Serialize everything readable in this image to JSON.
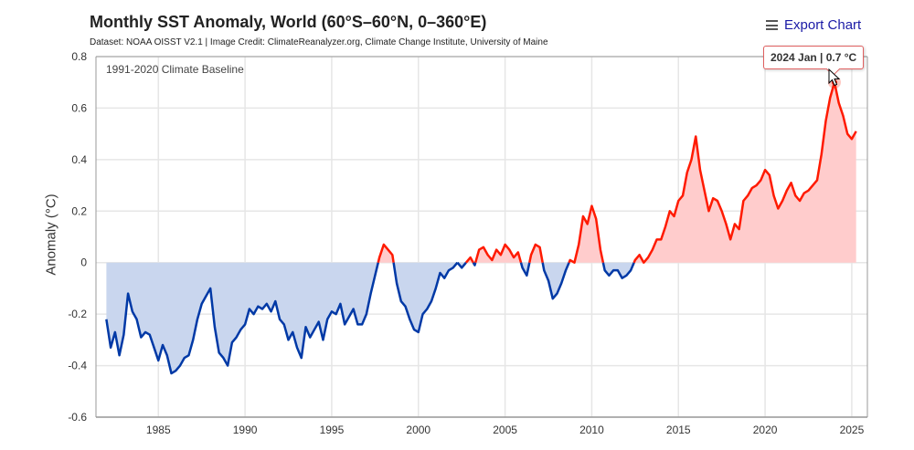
{
  "header": {
    "title": "Monthly SST Anomaly, World (60°S–60°N, 0–360°E)",
    "subtitle": "Dataset: NOAA OISST V2.1 | Image Credit: ClimateReanalyzer.org, Climate Change Institute, University of Maine",
    "export_label": "Export Chart",
    "export_icon": "hamburger-menu-icon"
  },
  "tooltip": {
    "text": "2024 Jan | 0.7 °C"
  },
  "colors": {
    "positive_line": "#ff1a00",
    "positive_fill": "#ffcccc",
    "negative_line": "#0039a6",
    "negative_fill": "#c9d6ee",
    "grid": "#e6e6e6",
    "axis": "#999999"
  },
  "chart_data": {
    "type": "area",
    "title": "Monthly SST Anomaly, World (60°S–60°N, 0–360°E)",
    "annotation": "1991-2020 Climate Baseline",
    "xlabel": "",
    "ylabel": "Anomaly (°C)",
    "xlim": [
      1981.4,
      2025.9
    ],
    "ylim": [
      -0.6,
      0.8
    ],
    "xticks": [
      1985,
      1990,
      1995,
      2000,
      2005,
      2010,
      2015,
      2020,
      2025
    ],
    "yticks": [
      -0.6,
      -0.4,
      -0.2,
      0,
      0.2,
      0.4,
      0.6,
      0.8
    ],
    "ytick_labels": [
      "-0.6",
      "-0.4",
      "-0.2",
      "0",
      "0.2",
      "0.4",
      "0.6",
      "0.8"
    ],
    "grid": true,
    "legend": "none",
    "baseline": 0,
    "sampling": "quarterly samples (Jan, Apr, Jul, Oct) approximating the monthly series",
    "start": 1982.0,
    "step": 0.25,
    "values": [
      -0.22,
      -0.33,
      -0.27,
      -0.36,
      -0.28,
      -0.12,
      -0.19,
      -0.22,
      -0.29,
      -0.27,
      -0.28,
      -0.33,
      -0.38,
      -0.32,
      -0.36,
      -0.43,
      -0.42,
      -0.4,
      -0.37,
      -0.36,
      -0.3,
      -0.22,
      -0.16,
      -0.13,
      -0.1,
      -0.25,
      -0.35,
      -0.37,
      -0.4,
      -0.31,
      -0.29,
      -0.26,
      -0.24,
      -0.18,
      -0.2,
      -0.17,
      -0.18,
      -0.16,
      -0.19,
      -0.15,
      -0.22,
      -0.24,
      -0.3,
      -0.27,
      -0.33,
      -0.37,
      -0.25,
      -0.29,
      -0.26,
      -0.23,
      -0.3,
      -0.22,
      -0.19,
      -0.2,
      -0.16,
      -0.24,
      -0.21,
      -0.18,
      -0.24,
      -0.24,
      -0.2,
      -0.12,
      -0.05,
      0.02,
      0.07,
      0.05,
      0.03,
      -0.08,
      -0.15,
      -0.17,
      -0.22,
      -0.26,
      -0.27,
      -0.2,
      -0.18,
      -0.15,
      -0.1,
      -0.04,
      -0.06,
      -0.03,
      -0.02,
      0.0,
      -0.02,
      0.0,
      0.02,
      -0.01,
      0.05,
      0.06,
      0.03,
      0.01,
      0.05,
      0.03,
      0.07,
      0.05,
      0.02,
      0.04,
      -0.02,
      -0.05,
      0.03,
      0.07,
      0.06,
      -0.03,
      -0.07,
      -0.14,
      -0.12,
      -0.08,
      -0.03,
      0.01,
      0.0,
      0.07,
      0.18,
      0.15,
      0.22,
      0.17,
      0.05,
      -0.03,
      -0.05,
      -0.03,
      -0.03,
      -0.06,
      -0.05,
      -0.03,
      0.01,
      0.03,
      0.0,
      0.02,
      0.05,
      0.09,
      0.09,
      0.14,
      0.2,
      0.18,
      0.24,
      0.26,
      0.35,
      0.4,
      0.49,
      0.36,
      0.28,
      0.2,
      0.25,
      0.24,
      0.2,
      0.15,
      0.09,
      0.15,
      0.13,
      0.24,
      0.26,
      0.29,
      0.3,
      0.32,
      0.36,
      0.34,
      0.26,
      0.21,
      0.24,
      0.28,
      0.31,
      0.26,
      0.24,
      0.27,
      0.28,
      0.3,
      0.32,
      0.42,
      0.55,
      0.64,
      0.7,
      0.62,
      0.57,
      0.5,
      0.48,
      0.51
    ],
    "highlighted_point": {
      "x": 2024.0,
      "label": "2024 Jan",
      "value": 0.7
    }
  }
}
